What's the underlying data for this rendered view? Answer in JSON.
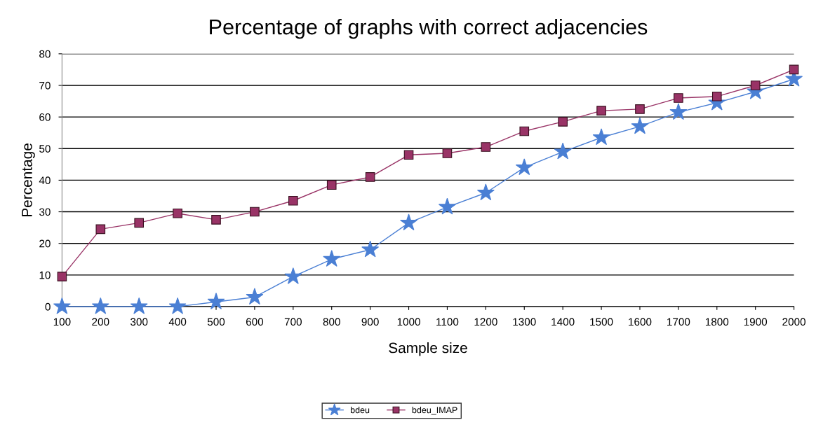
{
  "chart_data": {
    "type": "line",
    "title": "Percentage of graphs with correct adjacencies",
    "xlabel": "Sample size",
    "ylabel": "Percentage",
    "categories": [
      "100",
      "200",
      "300",
      "400",
      "500",
      "600",
      "700",
      "800",
      "900",
      "1000",
      "1100",
      "1200",
      "1300",
      "1400",
      "1500",
      "1600",
      "1700",
      "1800",
      "1900",
      "2000"
    ],
    "series": [
      {
        "name": "bdeu",
        "color": "#4a7fd4",
        "marker": "star",
        "values": [
          0,
          0,
          0,
          0,
          1.5,
          3,
          9.5,
          15,
          18,
          26.5,
          31.5,
          36,
          44,
          49,
          53.5,
          57,
          61.5,
          64.5,
          68,
          72
        ]
      },
      {
        "name": "bdeu_IMAP",
        "color": "#993366",
        "marker": "square",
        "values": [
          9.5,
          24.5,
          26.5,
          29.5,
          27.5,
          30,
          33.5,
          38.5,
          41,
          48,
          48.5,
          50.5,
          55.5,
          58.5,
          62,
          62.5,
          66,
          66.5,
          70,
          75
        ]
      }
    ],
    "ylim": [
      0,
      80
    ],
    "yticks": [
      0,
      10,
      20,
      30,
      40,
      50,
      60,
      70,
      80
    ],
    "grid": "y",
    "legend": "bottom"
  }
}
